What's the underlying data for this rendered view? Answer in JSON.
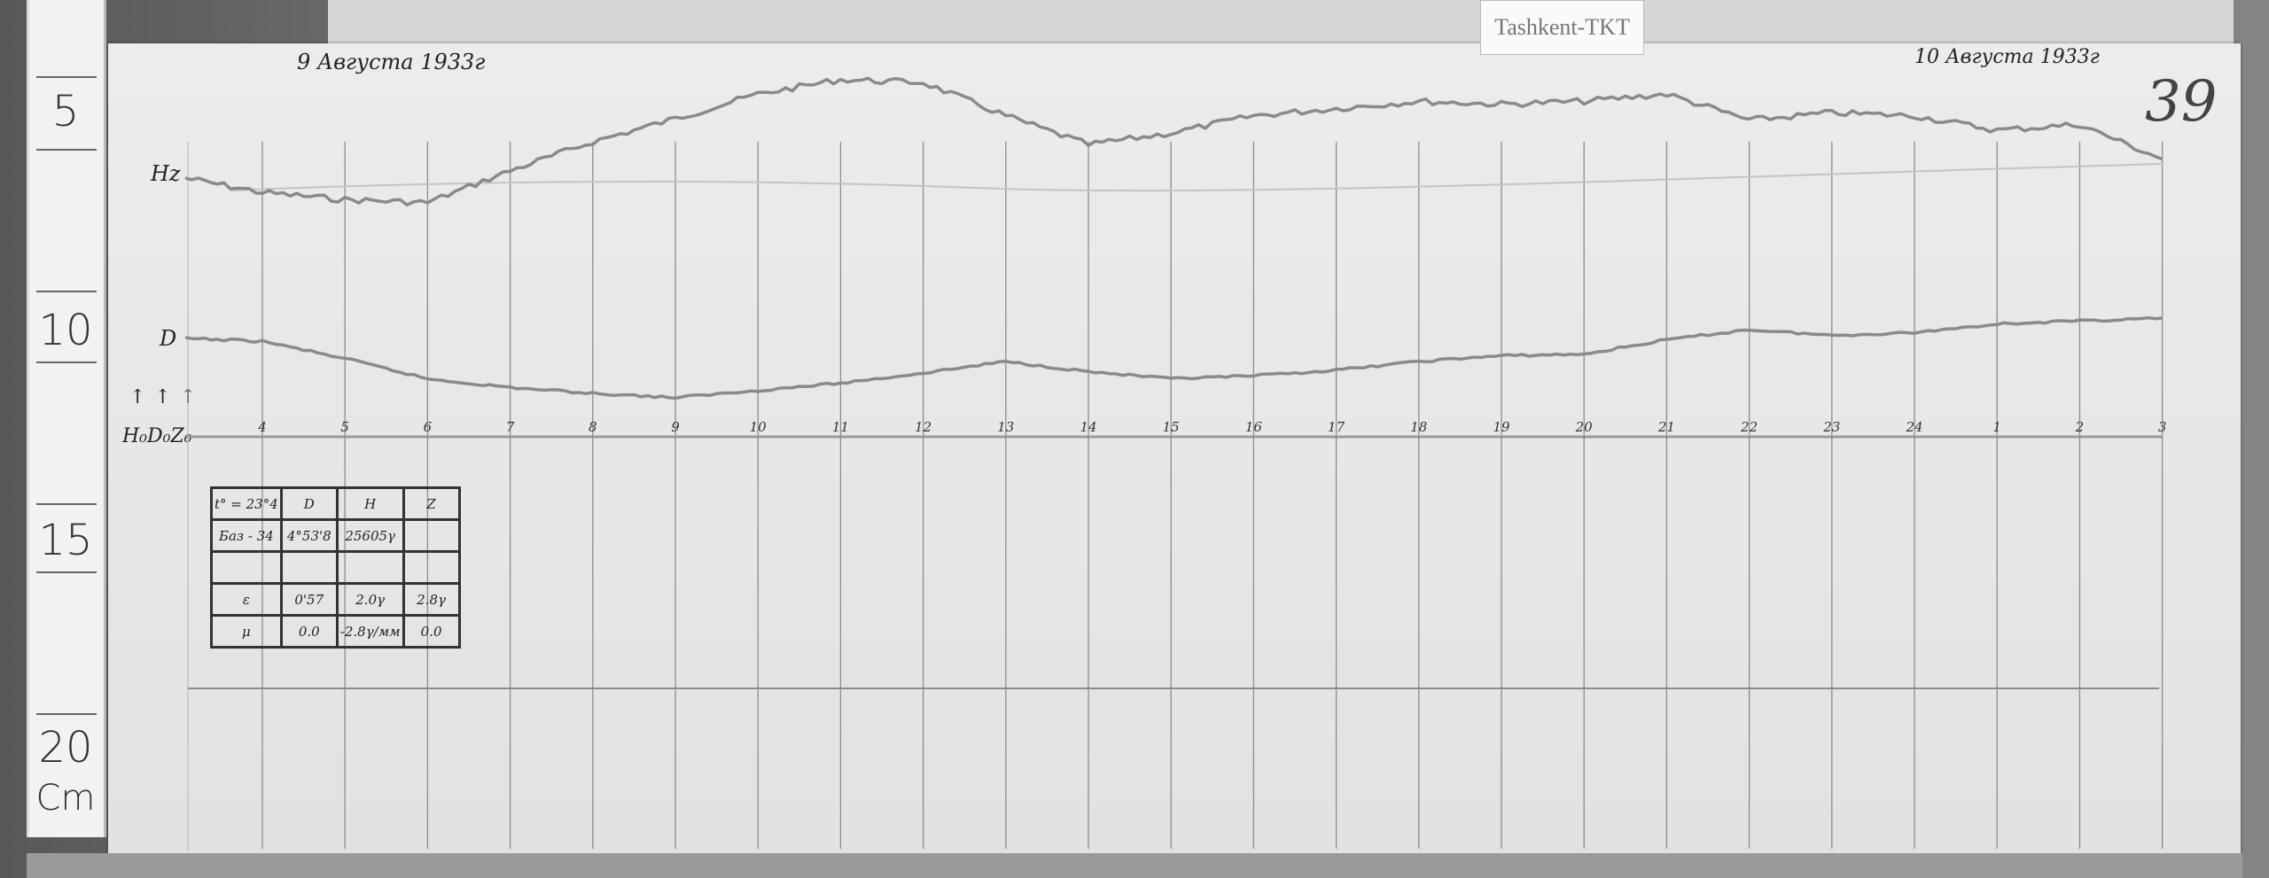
{
  "label_card": "Tashkent-TKT",
  "ruler": {
    "marks": [
      "5",
      "10",
      "15",
      "20"
    ],
    "unit": "Cm"
  },
  "header": {
    "date_left": "9 Августа 1933г",
    "date_right": "10 Августа 1933г",
    "sheet_number": "39"
  },
  "trace_labels": {
    "h": "Hz",
    "d": "D",
    "baselines": "H₀D₀Z₀"
  },
  "table": {
    "rows": [
      [
        "t° = 23°4",
        "D",
        "H",
        "Z"
      ],
      [
        "Баз - 34",
        "4°53'8",
        "25605γ",
        ""
      ],
      [
        "",
        "",
        "",
        ""
      ],
      [
        "ε",
        "0'57",
        "2.0γ",
        "2.8γ"
      ],
      [
        "μ",
        "0.0",
        "-2.8γ/мм",
        "0.0"
      ]
    ]
  },
  "chart_data": {
    "type": "line",
    "title": "",
    "xlabel": "",
    "ylabel": "",
    "grid": true,
    "categories": [
      "4",
      "5",
      "6",
      "7",
      "8",
      "9",
      "10",
      "11",
      "12",
      "13",
      "14",
      "15",
      "16",
      "17",
      "18",
      "19",
      "20",
      "21",
      "22",
      "23",
      "24",
      "1",
      "2",
      "3"
    ],
    "series": [
      {
        "name": "Hz",
        "values": [
          17,
          12,
          10,
          32,
          52,
          68,
          85,
          95,
          93,
          70,
          50,
          58,
          70,
          75,
          80,
          78,
          80,
          85,
          67,
          72,
          70,
          60,
          64,
          40
        ],
        "color": "#8a8a8a"
      },
      {
        "name": "D",
        "values": [
          44,
          32,
          18,
          12,
          8,
          5,
          10,
          15,
          22,
          30,
          23,
          18,
          20,
          24,
          30,
          34,
          35,
          45,
          52,
          48,
          50,
          56,
          58,
          60
        ],
        "color": "#8a8a8a"
      }
    ]
  }
}
